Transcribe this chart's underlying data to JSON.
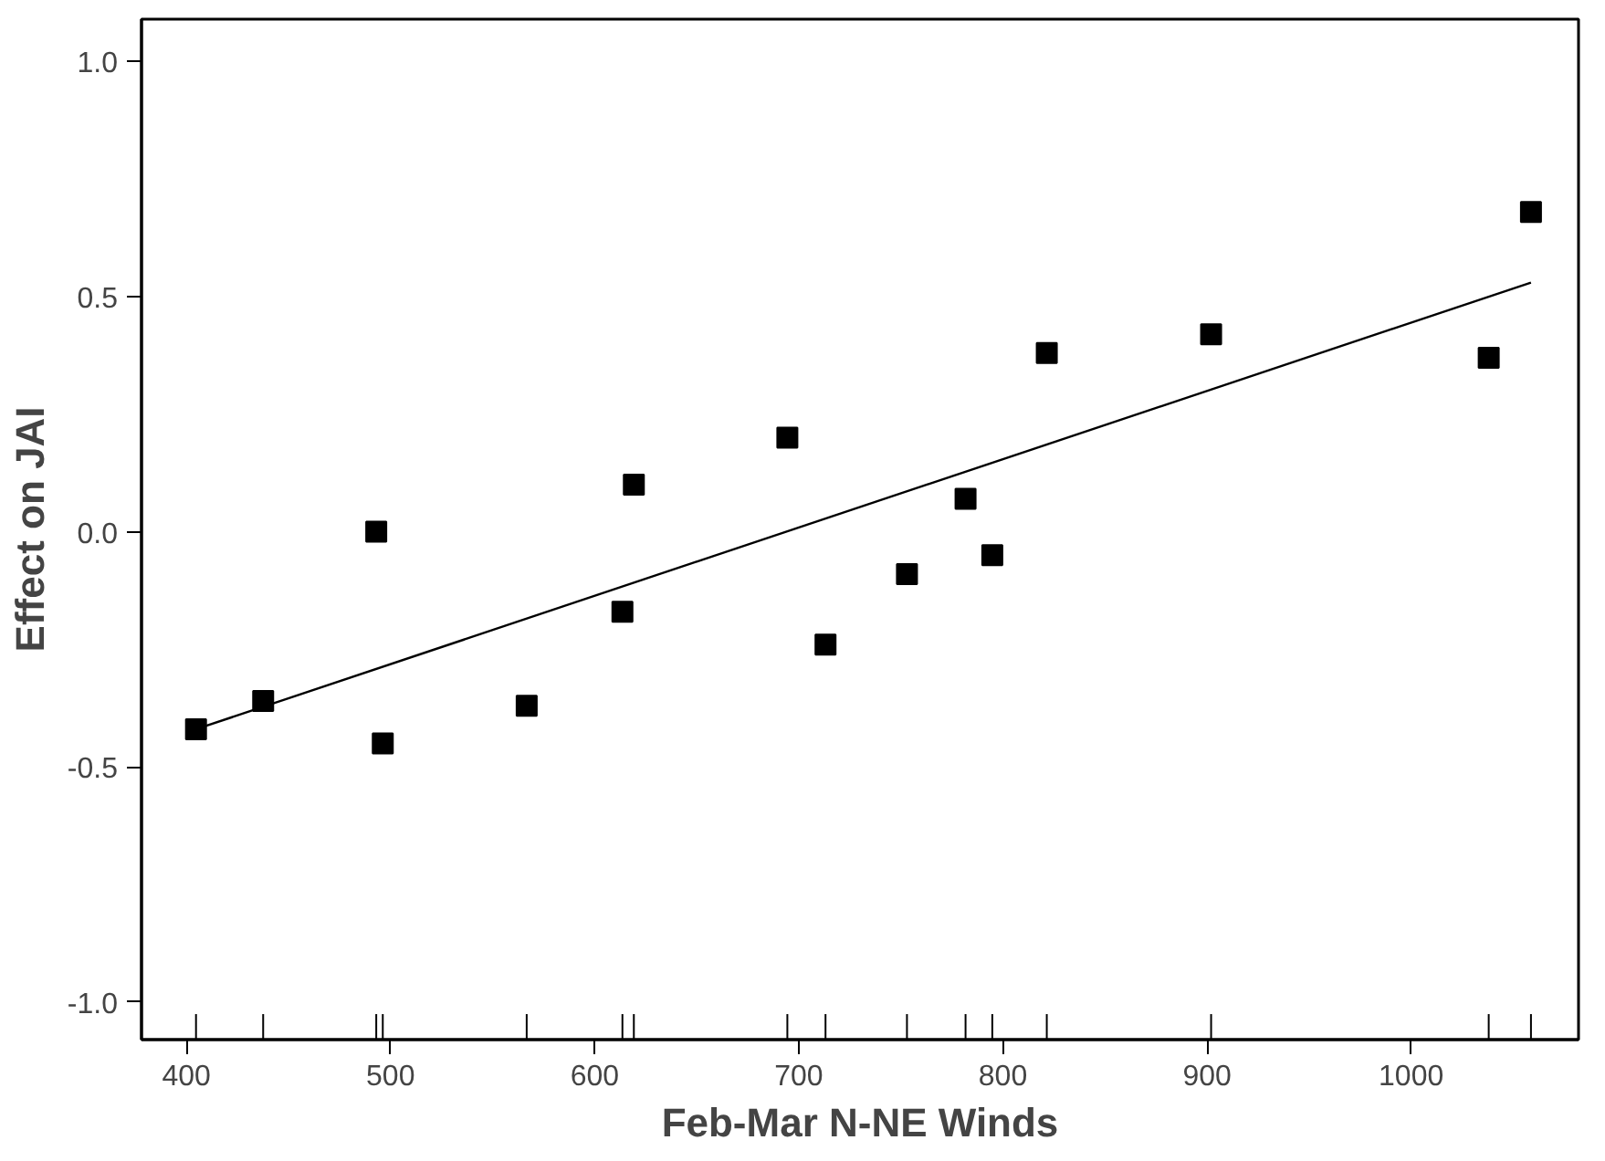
{
  "chart_data": {
    "type": "scatter",
    "xlabel": "Feb-Mar N-NE Winds",
    "ylabel": "Effect on JAI",
    "series": [
      {
        "color": "#000000",
        "marker": "square",
        "x": [
          404.7,
          437.6,
          493,
          496.2,
          566.7,
          613.6,
          619.2,
          694.4,
          713.1,
          753,
          781.7,
          794.8,
          821.5,
          902,
          1038,
          1058.7
        ],
        "values": [
          -0.42,
          -0.36,
          0.0,
          -0.45,
          -0.37,
          -0.17,
          0.1,
          0.2,
          -0.24,
          -0.09,
          0.07,
          -0.05,
          0.38,
          0.42,
          0.37,
          0.68
        ]
      },
      {
        "type": "line",
        "color": "#000000",
        "x": [
          404.7,
          1058.7
        ],
        "values": [
          -0.42,
          0.53
        ]
      }
    ],
    "xlim": [
      378,
      1082
    ],
    "ylim": [
      -1.08,
      1.09
    ],
    "xticks": [
      400,
      500,
      600,
      700,
      800,
      900,
      1000
    ],
    "yticks": [
      {
        "value": 1.0,
        "label": "1.0"
      },
      {
        "value": 0.5,
        "label": "0.5"
      },
      {
        "value": 0.0,
        "label": "0.0"
      },
      {
        "value": -0.5,
        "label": "-0.5"
      },
      {
        "value": -1.0,
        "label": "-1.0"
      }
    ],
    "grid": false
  }
}
